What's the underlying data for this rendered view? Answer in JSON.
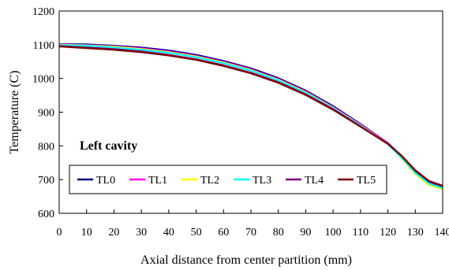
{
  "chart_data": {
    "type": "line",
    "title": "",
    "xlabel": "Axial distance from center partition (mm)",
    "ylabel": "Temperature (C)",
    "xlim": [
      0,
      140
    ],
    "ylim": [
      600,
      1200
    ],
    "x_ticks": [
      0,
      10,
      20,
      30,
      40,
      50,
      60,
      70,
      80,
      90,
      100,
      110,
      120,
      130,
      140
    ],
    "y_ticks": [
      600,
      700,
      800,
      900,
      1000,
      1100,
      1200
    ],
    "grid": false,
    "annotation": "Left cavity",
    "legend_position": "lower-left inside plot",
    "series": [
      {
        "name": "TL0",
        "color": "#000080",
        "x": [
          0,
          10,
          20,
          30,
          40,
          50,
          60,
          70,
          80,
          90,
          100,
          110,
          120,
          125,
          130,
          135,
          140
        ],
        "y": [
          1102,
          1101,
          1097,
          1092,
          1083,
          1070,
          1052,
          1030,
          1001,
          964,
          918,
          865,
          808,
          770,
          726,
          694,
          680
        ]
      },
      {
        "name": "TL1",
        "color": "#ff00ff",
        "x": [
          0,
          10,
          20,
          30,
          40,
          50,
          60,
          70,
          80,
          90,
          100,
          110,
          120,
          125,
          130,
          135,
          140
        ],
        "y": [
          1101,
          1099,
          1095,
          1089,
          1080,
          1067,
          1049,
          1027,
          998,
          961,
          915,
          863,
          807,
          767,
          722,
          689,
          676
        ]
      },
      {
        "name": "TL2",
        "color": "#ffff00",
        "x": [
          0,
          10,
          20,
          30,
          40,
          50,
          60,
          70,
          80,
          90,
          100,
          110,
          120,
          125,
          130,
          135,
          140
        ],
        "y": [
          1100,
          1098,
          1094,
          1087,
          1078,
          1065,
          1047,
          1025,
          996,
          959,
          913,
          861,
          805,
          763,
          716,
          684,
          671
        ]
      },
      {
        "name": "TL3",
        "color": "#00ffff",
        "x": [
          0,
          10,
          20,
          30,
          40,
          50,
          60,
          70,
          80,
          90,
          100,
          110,
          120,
          125,
          130,
          135,
          140
        ],
        "y": [
          1099,
          1097,
          1092,
          1085,
          1076,
          1063,
          1045,
          1023,
          994,
          957,
          912,
          860,
          805,
          765,
          720,
          688,
          675
        ]
      },
      {
        "name": "TL4",
        "color": "#800080",
        "x": [
          0,
          10,
          20,
          30,
          40,
          50,
          60,
          70,
          80,
          90,
          100,
          110,
          120,
          125,
          130,
          135,
          140
        ],
        "y": [
          1096,
          1092,
          1087,
          1080,
          1070,
          1057,
          1039,
          1017,
          989,
          953,
          909,
          858,
          806,
          770,
          726,
          694,
          680
        ]
      },
      {
        "name": "TL5",
        "color": "#800000",
        "x": [
          0,
          10,
          20,
          30,
          40,
          50,
          60,
          70,
          80,
          90,
          100,
          110,
          120,
          125,
          130,
          135,
          140
        ],
        "y": [
          1095,
          1090,
          1085,
          1078,
          1068,
          1055,
          1037,
          1015,
          987,
          951,
          907,
          857,
          806,
          771,
          728,
          696,
          682
        ]
      }
    ]
  }
}
